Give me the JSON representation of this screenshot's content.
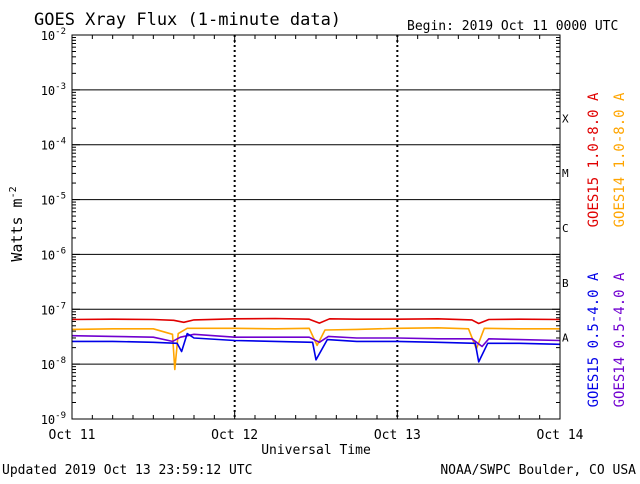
{
  "header": {
    "title": "GOES Xray Flux (1-minute data)",
    "begin": "Begin:  2019 Oct 11 0000 UTC"
  },
  "footer": {
    "updated": "Updated 2019 Oct 13 23:59:12 UTC",
    "credit": "NOAA/SWPC Boulder, CO USA"
  },
  "chart_data": {
    "type": "line",
    "title": "GOES Xray Flux (1-minute data)",
    "xlabel": "Universal Time",
    "ylabel": "Watts m",
    "ylabel_superscript": "-2",
    "y_scale": "log",
    "ylim": [
      1e-09,
      0.01
    ],
    "xlim": [
      "2019-10-11 00:00",
      "2019-10-14 00:00"
    ],
    "x_ticks": [
      {
        "t": "2019-10-11 00:00",
        "label": "Oct 11"
      },
      {
        "t": "2019-10-12 00:00",
        "label": "Oct 12"
      },
      {
        "t": "2019-10-13 00:00",
        "label": "Oct 13"
      },
      {
        "t": "2019-10-14 00:00",
        "label": "Oct 14"
      }
    ],
    "y_ticks": [
      {
        "value": 0.01,
        "base": "10",
        "exp": "-2"
      },
      {
        "value": 0.001,
        "base": "10",
        "exp": "-3"
      },
      {
        "value": 0.0001,
        "base": "10",
        "exp": "-4"
      },
      {
        "value": 1e-05,
        "base": "10",
        "exp": "-5"
      },
      {
        "value": 1e-06,
        "base": "10",
        "exp": "-6"
      },
      {
        "value": 1e-07,
        "base": "10",
        "exp": "-7"
      },
      {
        "value": 1e-08,
        "base": "10",
        "exp": "-8"
      },
      {
        "value": 1e-09,
        "base": "10",
        "exp": "-9"
      }
    ],
    "flare_classes": [
      {
        "label": "X",
        "value": 0.0001
      },
      {
        "label": "M",
        "value": 1e-05
      },
      {
        "label": "C",
        "value": 1e-06
      },
      {
        "label": "B",
        "value": 1e-07
      },
      {
        "label": "A",
        "value": 1e-08
      }
    ],
    "grid": "horizontal lines at each decade, dotted vertical lines at day boundaries",
    "series": [
      {
        "name": "GOES15 1.0-8.0 A",
        "color": "#e00000",
        "points": [
          [
            "2019-10-11 00:00",
            6.5e-08
          ],
          [
            "2019-10-11 06:00",
            6.6e-08
          ],
          [
            "2019-10-11 12:00",
            6.5e-08
          ],
          [
            "2019-10-11 15:00",
            6.3e-08
          ],
          [
            "2019-10-11 16:30",
            5.8e-08
          ],
          [
            "2019-10-11 18:00",
            6.4e-08
          ],
          [
            "2019-10-12 00:00",
            6.7e-08
          ],
          [
            "2019-10-12 06:00",
            6.8e-08
          ],
          [
            "2019-10-12 11:00",
            6.6e-08
          ],
          [
            "2019-10-12 12:30",
            5.6e-08
          ],
          [
            "2019-10-12 14:00",
            6.7e-08
          ],
          [
            "2019-10-12 18:00",
            6.6e-08
          ],
          [
            "2019-10-13 00:00",
            6.6e-08
          ],
          [
            "2019-10-13 06:00",
            6.7e-08
          ],
          [
            "2019-10-13 11:00",
            6.4e-08
          ],
          [
            "2019-10-13 12:00",
            5.5e-08
          ],
          [
            "2019-10-13 13:30",
            6.5e-08
          ],
          [
            "2019-10-13 18:00",
            6.6e-08
          ],
          [
            "2019-10-14 00:00",
            6.5e-08
          ]
        ]
      },
      {
        "name": "GOES14 1.0-8.0 A",
        "color": "#ffa500",
        "points": [
          [
            "2019-10-11 00:00",
            4.3e-08
          ],
          [
            "2019-10-11 06:00",
            4.4e-08
          ],
          [
            "2019-10-11 12:00",
            4.4e-08
          ],
          [
            "2019-10-11 14:50",
            3.5e-08
          ],
          [
            "2019-10-11 15:10",
            8e-09
          ],
          [
            "2019-10-11 15:40",
            3.6e-08
          ],
          [
            "2019-10-11 17:00",
            4.5e-08
          ],
          [
            "2019-10-12 00:00",
            4.5e-08
          ],
          [
            "2019-10-12 06:00",
            4.4e-08
          ],
          [
            "2019-10-12 11:00",
            4.5e-08
          ],
          [
            "2019-10-12 12:10",
            2.2e-08
          ],
          [
            "2019-10-12 13:20",
            4.2e-08
          ],
          [
            "2019-10-12 18:00",
            4.3e-08
          ],
          [
            "2019-10-13 00:00",
            4.5e-08
          ],
          [
            "2019-10-13 06:00",
            4.6e-08
          ],
          [
            "2019-10-13 10:30",
            4.4e-08
          ],
          [
            "2019-10-13 11:40",
            1.9e-08
          ],
          [
            "2019-10-13 12:50",
            4.5e-08
          ],
          [
            "2019-10-13 18:00",
            4.4e-08
          ],
          [
            "2019-10-14 00:00",
            4.4e-08
          ]
        ]
      },
      {
        "name": "GOES14 0.5-4.0 A",
        "color": "#7000d0",
        "points": [
          [
            "2019-10-11 00:00",
            3.3e-08
          ],
          [
            "2019-10-11 06:00",
            3.2e-08
          ],
          [
            "2019-10-11 12:00",
            3.1e-08
          ],
          [
            "2019-10-11 14:50",
            2.6e-08
          ],
          [
            "2019-10-11 16:00",
            3.1e-08
          ],
          [
            "2019-10-11 18:00",
            3.5e-08
          ],
          [
            "2019-10-12 00:00",
            3.1e-08
          ],
          [
            "2019-10-12 06:00",
            3.1e-08
          ],
          [
            "2019-10-12 11:00",
            3.1e-08
          ],
          [
            "2019-10-12 12:30",
            2.5e-08
          ],
          [
            "2019-10-12 13:50",
            3.2e-08
          ],
          [
            "2019-10-12 18:00",
            3e-08
          ],
          [
            "2019-10-13 00:00",
            3e-08
          ],
          [
            "2019-10-13 06:00",
            2.9e-08
          ],
          [
            "2019-10-13 11:00",
            2.9e-08
          ],
          [
            "2019-10-13 12:30",
            2.1e-08
          ],
          [
            "2019-10-13 13:30",
            2.9e-08
          ],
          [
            "2019-10-13 18:00",
            2.8e-08
          ],
          [
            "2019-10-14 00:00",
            2.7e-08
          ]
        ]
      },
      {
        "name": "GOES15 0.5-4.0 A",
        "color": "#0000e8",
        "points": [
          [
            "2019-10-11 00:00",
            2.6e-08
          ],
          [
            "2019-10-11 06:00",
            2.6e-08
          ],
          [
            "2019-10-11 12:00",
            2.5e-08
          ],
          [
            "2019-10-11 15:30",
            2.4e-08
          ],
          [
            "2019-10-11 16:10",
            1.7e-08
          ],
          [
            "2019-10-11 17:00",
            3.6e-08
          ],
          [
            "2019-10-11 18:00",
            3e-08
          ],
          [
            "2019-10-12 00:00",
            2.7e-08
          ],
          [
            "2019-10-12 06:00",
            2.6e-08
          ],
          [
            "2019-10-12 11:30",
            2.5e-08
          ],
          [
            "2019-10-12 12:00",
            1.2e-08
          ],
          [
            "2019-10-12 13:40",
            2.8e-08
          ],
          [
            "2019-10-12 18:00",
            2.6e-08
          ],
          [
            "2019-10-13 00:00",
            2.6e-08
          ],
          [
            "2019-10-13 06:00",
            2.5e-08
          ],
          [
            "2019-10-13 11:30",
            2.4e-08
          ],
          [
            "2019-10-13 12:00",
            1.1e-08
          ],
          [
            "2019-10-13 13:20",
            2.4e-08
          ],
          [
            "2019-10-13 18:00",
            2.4e-08
          ],
          [
            "2019-10-14 00:00",
            2.3e-08
          ]
        ]
      }
    ]
  }
}
